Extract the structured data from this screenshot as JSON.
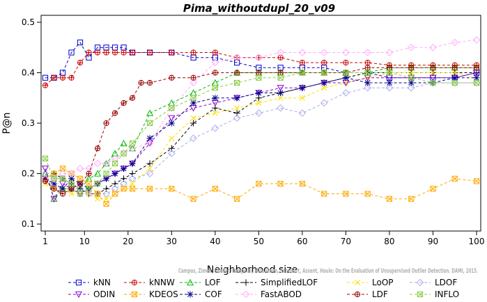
{
  "chart_data": {
    "type": "line",
    "title": "Pima_withoutdupl_20_v09",
    "xlabel": "Neighborhood size",
    "ylabel": "P@n",
    "xlim": [
      1,
      100
    ],
    "ylim": [
      0.1,
      0.5
    ],
    "x_ticks": [
      1,
      10,
      20,
      30,
      40,
      50,
      60,
      70,
      80,
      90,
      100
    ],
    "y_ticks": [
      0.1,
      0.2,
      0.3,
      0.4,
      0.5
    ],
    "grid": false,
    "legend_position": "bottom",
    "credit": "Campos, Zimek, Sander, Campello, Micenkova, Schubert, Assent, Houle: On the Evaluation of Unsupervised Outlier Detection. DAMI, 2015.",
    "series": [
      {
        "name": "kNN",
        "color": "#0000cc",
        "marker": "square",
        "x": [
          1,
          3,
          5,
          7,
          9,
          11,
          13,
          15,
          17,
          19,
          21,
          25,
          30,
          35,
          40,
          45,
          50,
          55,
          60,
          65,
          70,
          75,
          80,
          85,
          90,
          95,
          100
        ],
        "y": [
          0.39,
          0.39,
          0.4,
          0.44,
          0.46,
          0.43,
          0.45,
          0.45,
          0.45,
          0.45,
          0.44,
          0.44,
          0.44,
          0.43,
          0.43,
          0.42,
          0.41,
          0.41,
          0.41,
          0.41,
          0.4,
          0.4,
          0.39,
          0.39,
          0.39,
          0.39,
          0.4
        ]
      },
      {
        "name": "kNNW",
        "color": "#cc0000",
        "marker": "circle-plus",
        "x": [
          1,
          3,
          5,
          7,
          9,
          11,
          13,
          15,
          17,
          19,
          21,
          25,
          30,
          35,
          40,
          45,
          50,
          55,
          60,
          65,
          70,
          75,
          80,
          85,
          90,
          95,
          100
        ],
        "y": [
          0.375,
          0.39,
          0.39,
          0.39,
          0.42,
          0.44,
          0.44,
          0.44,
          0.44,
          0.44,
          0.44,
          0.44,
          0.44,
          0.44,
          0.44,
          0.43,
          0.43,
          0.43,
          0.42,
          0.42,
          0.42,
          0.42,
          0.415,
          0.415,
          0.415,
          0.415,
          0.415
        ]
      },
      {
        "name": "LOF",
        "color": "#00bb00",
        "marker": "triangle",
        "x": [
          1,
          3,
          5,
          7,
          9,
          11,
          13,
          15,
          17,
          19,
          21,
          25,
          30,
          35,
          40,
          45,
          50,
          55,
          60,
          65,
          70,
          75,
          80,
          85,
          90,
          95,
          100
        ],
        "y": [
          0.2,
          0.15,
          0.17,
          0.17,
          0.17,
          0.19,
          0.2,
          0.22,
          0.24,
          0.26,
          0.25,
          0.32,
          0.34,
          0.36,
          0.38,
          0.4,
          0.4,
          0.4,
          0.4,
          0.4,
          0.4,
          0.4,
          0.41,
          0.41,
          0.41,
          0.41,
          0.41
        ]
      },
      {
        "name": "SimplifiedLOF",
        "color": "#000000",
        "marker": "plus",
        "x": [
          1,
          3,
          5,
          7,
          9,
          11,
          13,
          15,
          17,
          19,
          21,
          25,
          30,
          35,
          40,
          45,
          50,
          55,
          60,
          65,
          70,
          75,
          80,
          85,
          90,
          95,
          100
        ],
        "y": [
          0.19,
          0.2,
          0.19,
          0.18,
          0.17,
          0.16,
          0.16,
          0.17,
          0.18,
          0.19,
          0.2,
          0.22,
          0.25,
          0.3,
          0.33,
          0.32,
          0.35,
          0.36,
          0.37,
          0.38,
          0.39,
          0.4,
          0.4,
          0.4,
          0.4,
          0.4,
          0.4
        ]
      },
      {
        "name": "LoOP",
        "color": "#ffdd00",
        "marker": "cross",
        "x": [
          1,
          3,
          5,
          7,
          9,
          11,
          13,
          15,
          17,
          19,
          21,
          25,
          30,
          35,
          40,
          45,
          50,
          55,
          60,
          65,
          70,
          75,
          80,
          85,
          90,
          95,
          100
        ],
        "y": [
          0.18,
          0.17,
          0.17,
          0.16,
          0.16,
          0.16,
          0.15,
          0.15,
          0.16,
          0.17,
          0.18,
          0.21,
          0.27,
          0.31,
          0.32,
          0.33,
          0.34,
          0.35,
          0.35,
          0.37,
          0.38,
          0.39,
          0.4,
          0.4,
          0.4,
          0.4,
          0.39
        ]
      },
      {
        "name": "LDOF",
        "color": "#aaaaee",
        "marker": "diamond",
        "x": [
          1,
          3,
          5,
          7,
          9,
          11,
          13,
          15,
          17,
          19,
          21,
          25,
          30,
          35,
          40,
          45,
          50,
          55,
          60,
          65,
          70,
          75,
          80,
          85,
          90,
          95,
          100
        ],
        "y": [
          0.2,
          0.19,
          0.19,
          0.18,
          0.17,
          0.16,
          0.16,
          0.16,
          0.17,
          0.18,
          0.19,
          0.2,
          0.24,
          0.27,
          0.29,
          0.31,
          0.32,
          0.33,
          0.32,
          0.34,
          0.36,
          0.37,
          0.37,
          0.37,
          0.38,
          0.38,
          0.38
        ]
      },
      {
        "name": "ODIN",
        "color": "#8800cc",
        "marker": "triangle-down",
        "x": [
          1,
          3,
          5,
          7,
          9,
          11,
          13,
          15,
          17,
          19,
          21,
          25,
          30,
          35,
          40,
          45,
          50,
          55,
          60,
          65,
          70,
          75,
          80,
          85,
          90,
          95,
          100
        ],
        "y": [
          0.21,
          0.15,
          0.18,
          0.17,
          0.16,
          0.17,
          0.18,
          0.19,
          0.2,
          0.21,
          0.22,
          0.26,
          0.31,
          0.33,
          0.34,
          0.35,
          0.36,
          0.37,
          0.37,
          0.38,
          0.38,
          0.39,
          0.39,
          0.39,
          0.39,
          0.39,
          0.4
        ]
      },
      {
        "name": "KDEOS",
        "color": "#ffaa00",
        "marker": "square-cross",
        "x": [
          1,
          3,
          5,
          7,
          9,
          11,
          13,
          15,
          17,
          19,
          21,
          25,
          30,
          35,
          40,
          45,
          50,
          55,
          60,
          65,
          70,
          75,
          80,
          85,
          90,
          95,
          100
        ],
        "y": [
          0.19,
          0.2,
          0.21,
          0.2,
          0.19,
          0.18,
          0.16,
          0.14,
          0.16,
          0.17,
          0.17,
          0.17,
          0.17,
          0.15,
          0.17,
          0.15,
          0.18,
          0.18,
          0.18,
          0.16,
          0.16,
          0.16,
          0.15,
          0.15,
          0.17,
          0.19,
          0.185
        ]
      },
      {
        "name": "COF",
        "color": "#000088",
        "marker": "asterisk",
        "x": [
          1,
          3,
          5,
          7,
          9,
          11,
          13,
          15,
          17,
          19,
          21,
          25,
          30,
          35,
          40,
          45,
          50,
          55,
          60,
          65,
          70,
          75,
          80,
          85,
          90,
          95,
          100
        ],
        "y": [
          0.19,
          0.18,
          0.17,
          0.19,
          0.18,
          0.17,
          0.18,
          0.19,
          0.2,
          0.21,
          0.22,
          0.27,
          0.3,
          0.34,
          0.35,
          0.35,
          0.36,
          0.36,
          0.37,
          0.38,
          0.39,
          0.38,
          0.38,
          0.38,
          0.38,
          0.39,
          0.39
        ]
      },
      {
        "name": "FastABOD",
        "color": "#ffaaff",
        "marker": "diamond",
        "x": [
          1,
          3,
          5,
          7,
          9,
          11,
          13,
          15,
          17,
          19,
          21,
          25,
          30,
          35,
          40,
          45,
          50,
          55,
          60,
          65,
          70,
          75,
          80,
          85,
          90,
          95,
          100
        ],
        "y": [
          0.19,
          0.19,
          0.2,
          0.2,
          0.21,
          0.21,
          0.22,
          0.22,
          0.23,
          0.24,
          0.25,
          0.26,
          0.33,
          0.38,
          0.42,
          0.43,
          0.43,
          0.44,
          0.44,
          0.44,
          0.44,
          0.44,
          0.44,
          0.45,
          0.45,
          0.46,
          0.465
        ]
      },
      {
        "name": "LDF",
        "color": "#990000",
        "marker": "circle-plus",
        "x": [
          1,
          3,
          5,
          7,
          9,
          11,
          13,
          15,
          17,
          19,
          21,
          23,
          25,
          30,
          35,
          40,
          45,
          50,
          55,
          60,
          65,
          70,
          75,
          80,
          85,
          90,
          95,
          100
        ],
        "y": [
          0.185,
          0.17,
          0.16,
          0.17,
          0.18,
          0.2,
          0.25,
          0.3,
          0.32,
          0.34,
          0.35,
          0.38,
          0.38,
          0.39,
          0.39,
          0.4,
          0.4,
          0.4,
          0.4,
          0.4,
          0.4,
          0.4,
          0.41,
          0.41,
          0.41,
          0.41,
          0.41,
          0.41
        ]
      },
      {
        "name": "INFLO",
        "color": "#88cc44",
        "marker": "square-cross",
        "x": [
          1,
          3,
          5,
          7,
          9,
          11,
          13,
          15,
          17,
          19,
          21,
          25,
          30,
          35,
          40,
          45,
          50,
          55,
          60,
          65,
          70,
          75,
          80,
          85,
          90,
          95,
          100
        ],
        "y": [
          0.23,
          0.19,
          0.19,
          0.18,
          0.16,
          0.17,
          0.18,
          0.2,
          0.22,
          0.24,
          0.26,
          0.3,
          0.33,
          0.35,
          0.37,
          0.38,
          0.39,
          0.39,
          0.4,
          0.4,
          0.4,
          0.4,
          0.4,
          0.39,
          0.38,
          0.38,
          0.38
        ]
      }
    ]
  }
}
